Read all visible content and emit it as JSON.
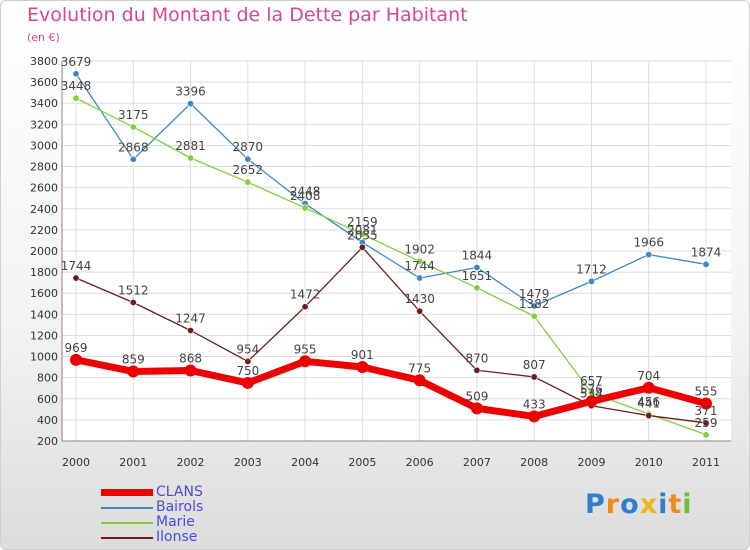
{
  "header": {
    "title": "Evolution du Montant de la Dette par Habitant",
    "subtitle": "(en €)"
  },
  "logo": {
    "text": "Proxiti",
    "letters": [
      {
        "char": "P",
        "color": "#2f7fd0"
      },
      {
        "char": "r",
        "color": "#f08a1d"
      },
      {
        "char": "o",
        "color": "#2f7fd0"
      },
      {
        "char": "x",
        "color": "#f0b41d"
      },
      {
        "char": "i",
        "color": "#2f7fd0"
      },
      {
        "char": "t",
        "color": "#f08a1d"
      },
      {
        "char": "i",
        "color": "#6cbf3a"
      }
    ]
  },
  "chart_data": {
    "type": "line",
    "title": "Evolution du Montant de la Dette par Habitant",
    "ylabel": "(en €)",
    "x": [
      "2000",
      "2001",
      "2002",
      "2003",
      "2004",
      "2005",
      "2006",
      "2007",
      "2008",
      "2009",
      "2010",
      "2011"
    ],
    "ylim": [
      200,
      3800
    ],
    "yticks": [
      200,
      400,
      600,
      800,
      1000,
      1200,
      1400,
      1600,
      1800,
      2000,
      2200,
      2400,
      2600,
      2800,
      3000,
      3200,
      3400,
      3600,
      3800
    ],
    "grid": true,
    "legend_position": "bottom-left",
    "series": [
      {
        "name": "CLANS",
        "color": "#ee0000",
        "values": [
          969,
          859,
          868,
          750,
          955,
          901,
          775,
          509,
          433,
          576,
          704,
          555
        ]
      },
      {
        "name": "Bairols",
        "color": "#3f88c8",
        "values": [
          3679,
          2868,
          3396,
          2870,
          2448,
          2081,
          1744,
          1844,
          1479,
          1712,
          1966,
          1874
        ]
      },
      {
        "name": "Marie",
        "color": "#7fd13b",
        "values": [
          3448,
          3175,
          2881,
          2652,
          2408,
          2159,
          1902,
          1651,
          1382,
          657,
          456,
          259
        ]
      },
      {
        "name": "Ilonse",
        "color": "#6e1c1c",
        "values": [
          1744,
          1512,
          1247,
          954,
          1472,
          2035,
          1430,
          870,
          807,
          534,
          441,
          371
        ]
      }
    ]
  }
}
